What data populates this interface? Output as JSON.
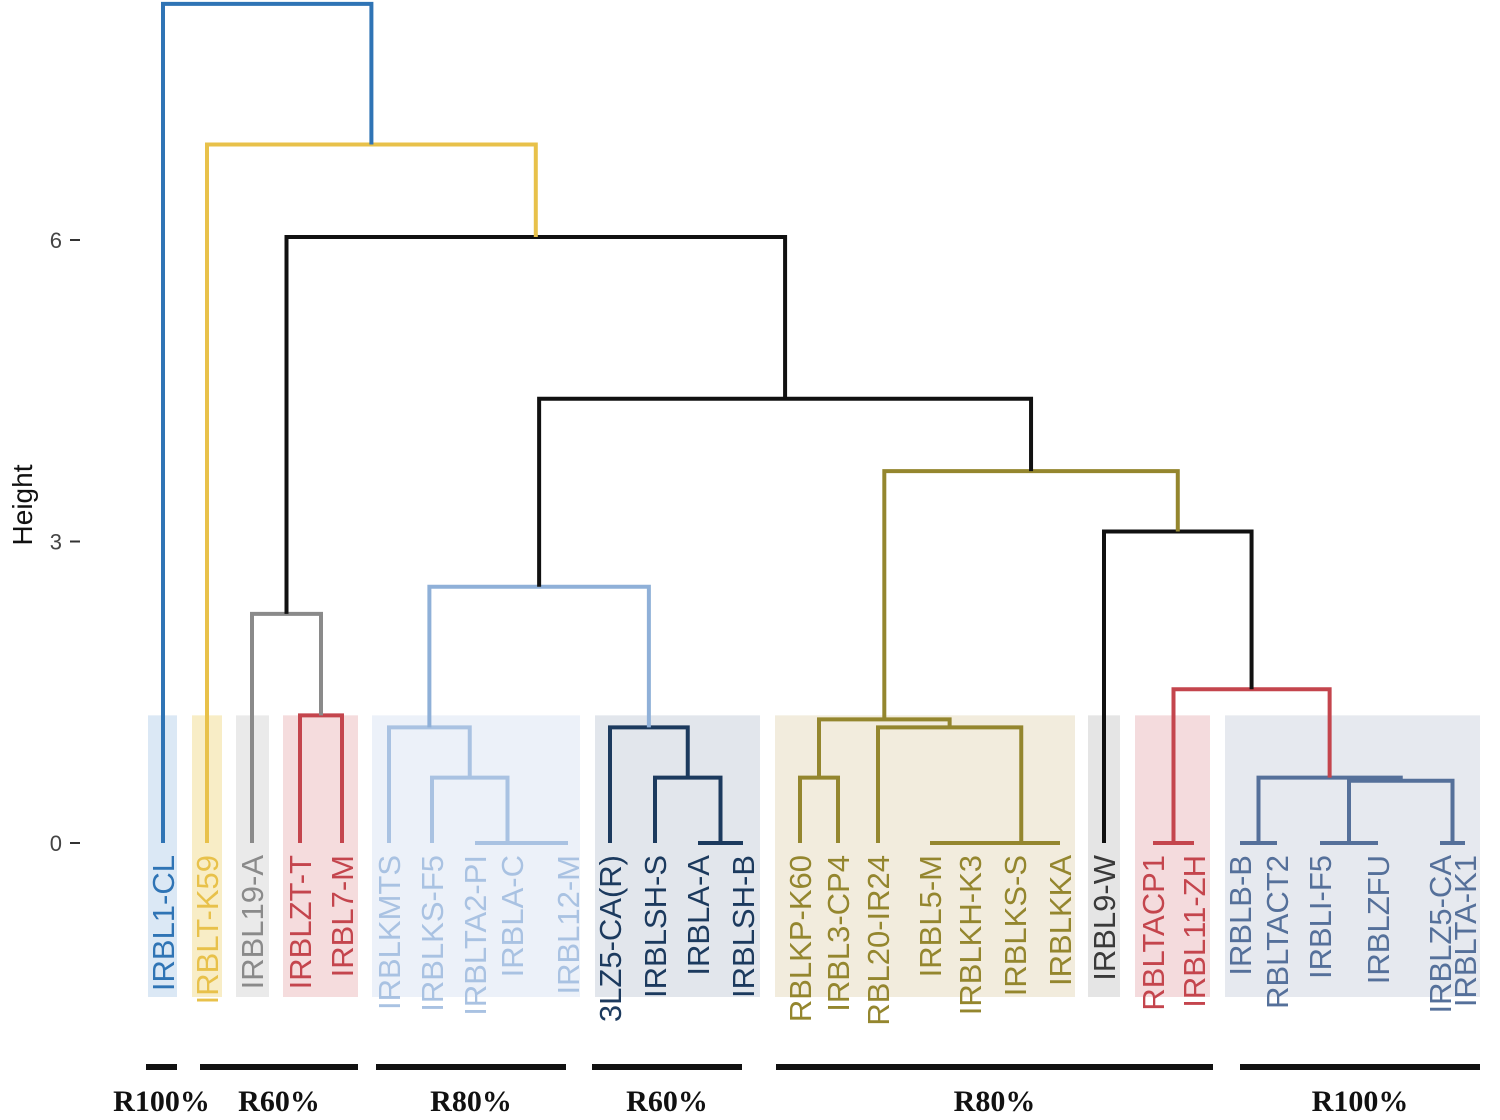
{
  "chart_data": {
    "type": "dendrogram",
    "ylabel": "Height",
    "ylim": [
      -1.9,
      8.4
    ],
    "yticks": [
      {
        "value": 0,
        "label": "0"
      },
      {
        "value": 3,
        "label": "3"
      },
      {
        "value": 6,
        "label": "6"
      }
    ],
    "cut_height": 1.27,
    "leaves": [
      {
        "label": "IRBL1-CL",
        "color": "#2f74b5"
      },
      {
        "label": "IRBLT-K59",
        "color": "#e8c14a"
      },
      {
        "label": "IRBL19-A",
        "color": "#8a8a8a"
      },
      {
        "label": "IRBLZT-T",
        "color": "#c4454d"
      },
      {
        "label": "IRBL7-M",
        "color": "#c4454d"
      },
      {
        "label": "IRBLKMTS",
        "color": "#a9c2e2"
      },
      {
        "label": "IRBLKS-F5",
        "color": "#a9c2e2"
      },
      {
        "label": "IRBLTA2-PI",
        "color": "#a9c2e2"
      },
      {
        "label": "IRBLA-C",
        "color": "#a9c2e2"
      },
      {
        "label": "IRBL12-M",
        "color": "#a9c2e2"
      },
      {
        "label": "3LZ5-CA(R)",
        "color": "#1c3a5e"
      },
      {
        "label": "IRBLSH-S",
        "color": "#1c3a5e"
      },
      {
        "label": "IRBLA-A",
        "color": "#1c3a5e"
      },
      {
        "label": "IRBLSH-B",
        "color": "#1c3a5e"
      },
      {
        "label": "RBLKP-K60",
        "color": "#94862e"
      },
      {
        "label": "IRBL3-CP4",
        "color": "#94862e"
      },
      {
        "label": "RBL20-IR24",
        "color": "#94862e"
      },
      {
        "label": "IRBL5-M",
        "color": "#94862e"
      },
      {
        "label": "IRBLKH-K3",
        "color": "#94862e"
      },
      {
        "label": "IRBLKS-S",
        "color": "#94862e"
      },
      {
        "label": "IRBLKKA",
        "color": "#94862e"
      },
      {
        "label": "IRBL9-W",
        "color": "#3a3a3a"
      },
      {
        "label": "RBLTACP1",
        "color": "#c4454d"
      },
      {
        "label": "IRBL11-ZH",
        "color": "#c4454d"
      },
      {
        "label": "IRBLB-B",
        "color": "#55709a"
      },
      {
        "label": "RBLTACT2",
        "color": "#55709a"
      },
      {
        "label": "IRBLI-F5",
        "color": "#55709a"
      },
      {
        "label": "IRBLZFU",
        "color": "#55709a"
      },
      {
        "label": "IRBLZ5-CA",
        "color": "#55709a"
      },
      {
        "label": "IRBLTA-K1",
        "color": "#55709a"
      }
    ],
    "clusters": [
      {
        "first": 0,
        "last": 0,
        "fill": "#cfe0f2"
      },
      {
        "first": 1,
        "last": 1,
        "fill": "#f5e7b3"
      },
      {
        "first": 2,
        "last": 2,
        "fill": "#e3e3e3"
      },
      {
        "first": 3,
        "last": 4,
        "fill": "#f2d0d2"
      },
      {
        "first": 5,
        "last": 9,
        "fill": "#e6ecf7"
      },
      {
        "first": 10,
        "last": 13,
        "fill": "#d8dde5"
      },
      {
        "first": 14,
        "last": 20,
        "fill": "#ede6d2"
      },
      {
        "first": 21,
        "last": 21,
        "fill": "#dcdcdc"
      },
      {
        "first": 22,
        "last": 23,
        "fill": "#f0cfd2"
      },
      {
        "first": 24,
        "last": 29,
        "fill": "#dde2ea"
      }
    ],
    "merges": [
      {
        "id": "m1",
        "a": "L8",
        "b": "L9",
        "h": 0.0,
        "color": "#a9c2e2"
      },
      {
        "id": "m2",
        "a": "L12",
        "b": "L13",
        "h": 0.0,
        "color": "#1c3a5e"
      },
      {
        "id": "m3",
        "a": "L17",
        "b": "L18",
        "h": 0.0,
        "color": "#94862e"
      },
      {
        "id": "m4",
        "a": "m3",
        "b": "L19",
        "h": 0.0,
        "color": "#94862e"
      },
      {
        "id": "m5",
        "a": "m4",
        "b": "L20",
        "h": 0.0,
        "color": "#94862e"
      },
      {
        "id": "m6",
        "a": "L22",
        "b": "L23",
        "h": 0.0,
        "color": "#c4454d"
      },
      {
        "id": "m7",
        "a": "L24",
        "b": "L25",
        "h": 0.0,
        "color": "#55709a"
      },
      {
        "id": "m8",
        "a": "L26",
        "b": "L27",
        "h": 0.0,
        "color": "#55709a"
      },
      {
        "id": "m9",
        "a": "L28",
        "b": "L29",
        "h": 0.0,
        "color": "#55709a"
      },
      {
        "id": "m10",
        "a": "L7",
        "b": "m1",
        "h": 0.0,
        "color": "#a9c2e2"
      },
      {
        "id": "m11",
        "a": "L6",
        "b": "m10",
        "h": 0.65,
        "color": "#a9c2e2"
      },
      {
        "id": "m12",
        "a": "L11",
        "b": "m2",
        "h": 0.65,
        "color": "#1c3a5e"
      },
      {
        "id": "m13",
        "a": "L14",
        "b": "L15",
        "h": 0.65,
        "color": "#94862e"
      },
      {
        "id": "m14",
        "a": "m8",
        "b": "m9",
        "h": 0.62,
        "color": "#55709a"
      },
      {
        "id": "m15",
        "a": "m7",
        "b": "m14",
        "h": 0.65,
        "color": "#55709a"
      },
      {
        "id": "m16",
        "a": "L16",
        "b": "m5",
        "h": 1.15,
        "color": "#94862e"
      },
      {
        "id": "m17",
        "a": "L5",
        "b": "m11",
        "h": 1.15,
        "color": "#a9c2e2"
      },
      {
        "id": "m18",
        "a": "L10",
        "b": "m12",
        "h": 1.15,
        "color": "#1c3a5e"
      },
      {
        "id": "m19",
        "a": "m13",
        "b": "m16",
        "h": 1.23,
        "color": "#94862e"
      },
      {
        "id": "m20",
        "a": "L3",
        "b": "L4",
        "h": 1.27,
        "color": "#c4454d"
      },
      {
        "id": "m21",
        "a": "m6",
        "b": "m15",
        "h": 1.53,
        "color": "#c4454d"
      },
      {
        "id": "m22",
        "a": "L2",
        "b": "m20",
        "h": 2.28,
        "color": "#8a8a8a"
      },
      {
        "id": "m23",
        "a": "m17",
        "b": "m18",
        "h": 2.55,
        "color": "#8fb0d8"
      },
      {
        "id": "m24",
        "a": "L21",
        "b": "m21",
        "h": 3.1,
        "color": "#111111"
      },
      {
        "id": "m25",
        "a": "m19",
        "b": "m24",
        "h": 3.7,
        "color": "#94862e"
      },
      {
        "id": "m26",
        "a": "m23",
        "b": "m25",
        "h": 4.42,
        "color": "#111111"
      },
      {
        "id": "m27",
        "a": "m22",
        "b": "m26",
        "h": 6.03,
        "color": "#111111"
      },
      {
        "id": "m28",
        "a": "L1",
        "b": "m27",
        "h": 6.95,
        "color": "#e8c14a"
      },
      {
        "id": "m29",
        "a": "L0",
        "b": "m28",
        "h": 8.35,
        "color": "#2f74b5"
      }
    ],
    "groups": [
      {
        "label": "R100%",
        "first": 0,
        "last": 0
      },
      {
        "label": "R60%",
        "first": 1,
        "last": 4
      },
      {
        "label": "R80%",
        "first": 5,
        "last": 9
      },
      {
        "label": "R60%",
        "first": 10,
        "last": 13
      },
      {
        "label": "R80%",
        "first": 14,
        "last": 23
      },
      {
        "label": "R100%",
        "first": 24,
        "last": 29
      }
    ]
  }
}
